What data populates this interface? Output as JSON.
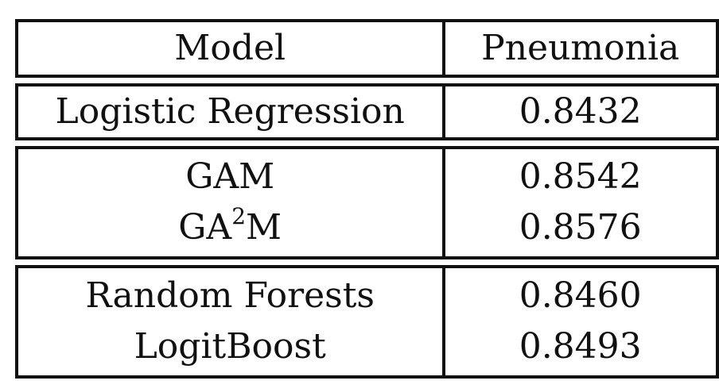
{
  "table": {
    "header": {
      "model": "Model",
      "metric": "Pneumonia"
    },
    "groups": [
      {
        "rows": [
          {
            "model": "Logistic Regression",
            "value": "0.8432"
          }
        ]
      },
      {
        "rows": [
          {
            "model": "GAM",
            "value": "0.8542"
          },
          {
            "model_base": "GA",
            "model_sup": "2",
            "model_rest": "M",
            "value": "0.8576"
          }
        ]
      },
      {
        "rows": [
          {
            "model": "Random Forests",
            "value": "0.8460"
          },
          {
            "model": "LogitBoost",
            "value": "0.8493"
          }
        ]
      }
    ]
  }
}
